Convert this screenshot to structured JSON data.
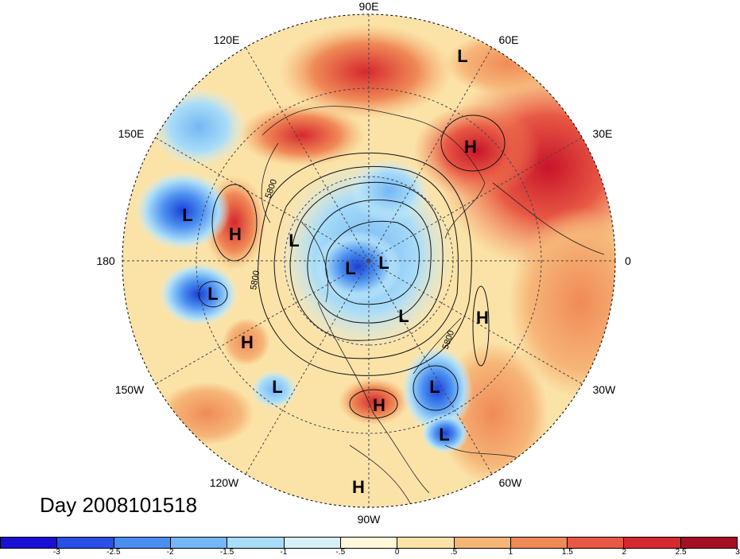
{
  "map": {
    "longitude_labels": [
      {
        "id": "lon-90e",
        "text": "90E"
      },
      {
        "id": "lon-60e",
        "text": "60E"
      },
      {
        "id": "lon-120e",
        "text": "120E"
      },
      {
        "id": "lon-150e",
        "text": "150E"
      },
      {
        "id": "lon-30e",
        "text": "30E"
      },
      {
        "id": "lon-180",
        "text": "180"
      },
      {
        "id": "lon-0",
        "text": "0"
      },
      {
        "id": "lon-150w",
        "text": "150W"
      },
      {
        "id": "lon-30w",
        "text": "30W"
      },
      {
        "id": "lon-120w",
        "text": "120W"
      },
      {
        "id": "lon-60w",
        "text": "60W"
      },
      {
        "id": "lon-90w",
        "text": "90W"
      }
    ],
    "contour_value_labels": [
      "5800",
      "5800",
      "5800"
    ],
    "pressure_centers": [
      {
        "text": "L",
        "region": "north-atlantic-top"
      },
      {
        "text": "H",
        "region": "western-russia"
      },
      {
        "text": "L",
        "region": "northwest-pacific"
      },
      {
        "text": "H",
        "region": "north-pacific"
      },
      {
        "text": "L",
        "region": "arctic-1"
      },
      {
        "text": "L",
        "region": "arctic-2"
      },
      {
        "text": "L",
        "region": "arctic-3"
      },
      {
        "text": "L",
        "region": "hudson-bay"
      },
      {
        "text": "L",
        "region": "central-pacific"
      },
      {
        "text": "H",
        "region": "northeast-pacific"
      },
      {
        "text": "H",
        "region": "mid-atlantic"
      },
      {
        "text": "L",
        "region": "east-pacific"
      },
      {
        "text": "L",
        "region": "western-atlantic"
      },
      {
        "text": "H",
        "region": "southeast-us"
      },
      {
        "text": "L",
        "region": "caribbean"
      },
      {
        "text": "H",
        "region": "central-america"
      }
    ]
  },
  "day_label": "Day 2008101518",
  "colorbar": {
    "colors": [
      "#1a0fd4",
      "#2a4fe6",
      "#4a8ef0",
      "#74b7f5",
      "#a8dcf8",
      "#d6f0fa",
      "#fdf8d9",
      "#fbe3a8",
      "#f6b577",
      "#f08a57",
      "#e85844",
      "#d6282e",
      "#a50f22"
    ],
    "tick_labels": [
      "-3",
      "-2.5",
      "-2",
      "-1.5",
      "-1",
      "-.5",
      "0",
      ".5",
      "1",
      "1.5",
      "2",
      "2.5",
      "3"
    ]
  }
}
